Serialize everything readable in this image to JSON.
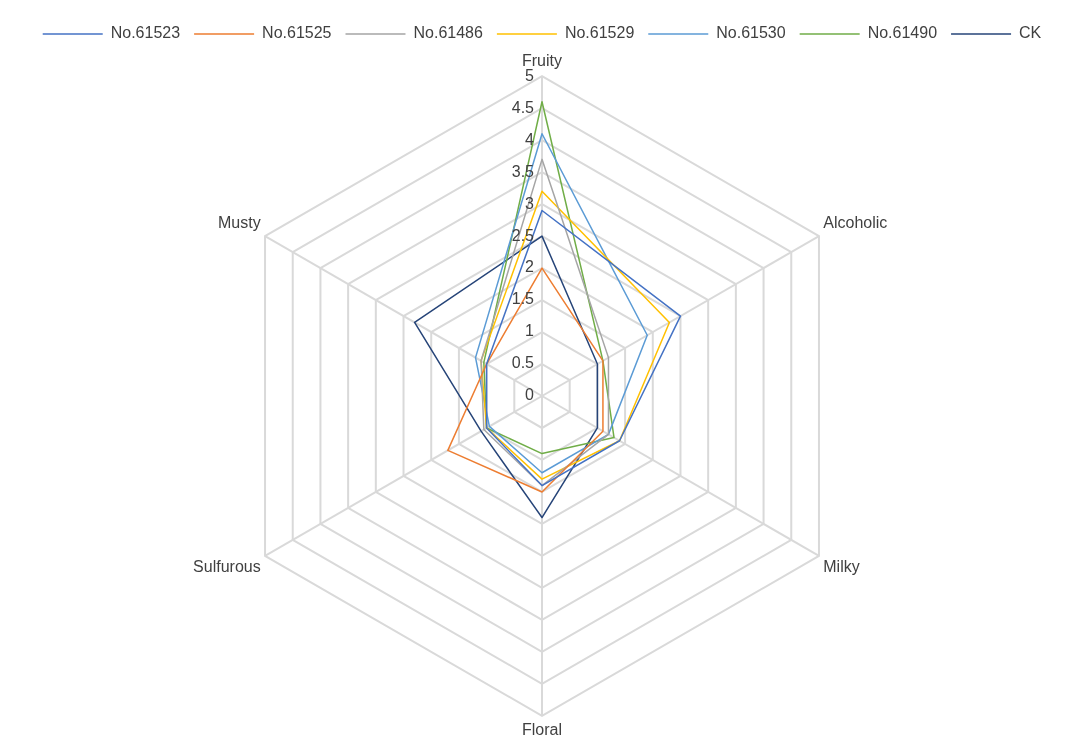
{
  "chart_data": {
    "type": "radar",
    "categories": [
      "Fruity",
      "Alcoholic",
      "Milky",
      "Floral",
      "Sulfurous",
      "Musty"
    ],
    "series": [
      {
        "name": "No.61523",
        "color": "#4472c4",
        "values": [
          2.9,
          2.5,
          1.4,
          1.4,
          1.0,
          1.0
        ]
      },
      {
        "name": "No.61525",
        "color": "#ed7d31",
        "values": [
          2.0,
          1.1,
          1.1,
          1.5,
          1.7,
          1.0
        ]
      },
      {
        "name": "No.61486",
        "color": "#a5a5a5",
        "values": [
          3.7,
          1.2,
          1.2,
          1.4,
          1.05,
          1.1
        ]
      },
      {
        "name": "No.61529",
        "color": "#ffc000",
        "values": [
          3.2,
          2.3,
          1.4,
          1.3,
          1.0,
          1.1
        ]
      },
      {
        "name": "No.61530",
        "color": "#5b9bd5",
        "values": [
          4.1,
          1.9,
          1.2,
          1.2,
          0.95,
          1.2
        ]
      },
      {
        "name": "No.61490",
        "color": "#70ad47",
        "values": [
          4.6,
          1.1,
          1.3,
          0.9,
          1.0,
          1.05
        ]
      },
      {
        "name": "CK",
        "color": "#264478",
        "values": [
          2.5,
          1.0,
          1.0,
          1.9,
          1.1,
          2.3
        ]
      }
    ],
    "ylim": [
      0,
      5
    ],
    "yticks": [
      0,
      0.5,
      1,
      1.5,
      2,
      2.5,
      3,
      3.5,
      4,
      4.5,
      5
    ],
    "grid": true,
    "legend": "top",
    "marker": "none",
    "line_style": "solid"
  }
}
